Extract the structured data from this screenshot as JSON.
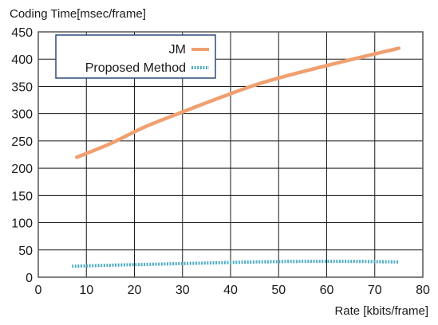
{
  "chart_data": {
    "type": "line",
    "title": "",
    "ylabel": "Coding Time[msec/frame]",
    "xlabel": "Rate [kbits/frame]",
    "xlim": [
      0,
      80
    ],
    "ylim": [
      0,
      450
    ],
    "xticks": [
      0,
      10,
      20,
      30,
      40,
      50,
      60,
      70,
      80
    ],
    "yticks": [
      0,
      50,
      100,
      150,
      200,
      250,
      300,
      350,
      400,
      450
    ],
    "grid": true,
    "legend_position": "top-left",
    "series": [
      {
        "name": "JM",
        "color": "#f0a070",
        "style": "solid",
        "x": [
          8,
          15,
          22,
          30,
          38,
          46,
          55,
          65,
          75
        ],
        "y": [
          220,
          245,
          275,
          303,
          330,
          355,
          377,
          399,
          420
        ]
      },
      {
        "name": "Proposed Method",
        "color": "#4aacc6",
        "style": "dotted",
        "x": [
          7,
          15,
          25,
          35,
          45,
          55,
          65,
          75
        ],
        "y": [
          20,
          22,
          24,
          26,
          28,
          29,
          29,
          28
        ]
      }
    ]
  }
}
